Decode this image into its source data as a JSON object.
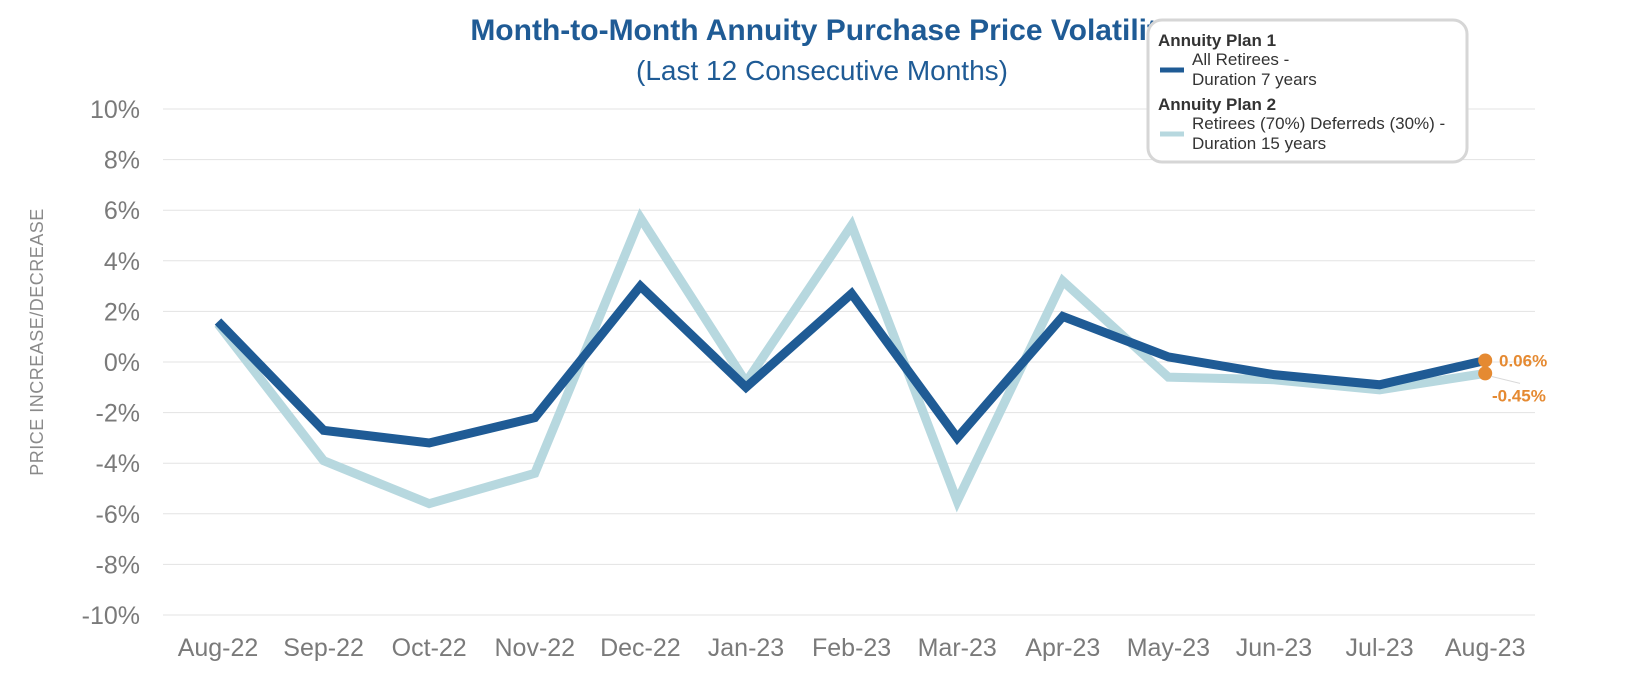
{
  "chart_data": {
    "type": "line",
    "title": "Month-to-Month Annuity Purchase Price Volatility",
    "subtitle": "(Last 12 Consecutive Months)",
    "ylabel": "PRICE INCREASE/DECREASE",
    "xlabel": "",
    "ylim": [
      -10,
      10
    ],
    "yticks": [
      10,
      8,
      6,
      4,
      2,
      0,
      -2,
      -4,
      -6,
      -8,
      -10
    ],
    "ytick_labels": [
      "10%",
      "8%",
      "6%",
      "4%",
      "2%",
      "0%",
      "-2%",
      "-4%",
      "-6%",
      "-8%",
      "-10%"
    ],
    "grid": true,
    "categories": [
      "Aug-22",
      "Sep-22",
      "Oct-22",
      "Nov-22",
      "Dec-22",
      "Jan-23",
      "Feb-23",
      "Mar-23",
      "Apr-23",
      "May-23",
      "Jun-23",
      "Jul-23",
      "Aug-23"
    ],
    "series": [
      {
        "name": "Annuity Plan 2",
        "legend_title": "Annuity Plan 2",
        "legend_lines": [
          "Retirees (70%) Deferreds (30%) -",
          "Duration 15 years"
        ],
        "color": "#b7d8df",
        "values": [
          1.5,
          -3.9,
          -5.6,
          -4.4,
          5.7,
          -0.8,
          5.4,
          -5.5,
          3.2,
          -0.6,
          -0.7,
          -1.1,
          -0.45
        ],
        "end_label": "-0.45%"
      },
      {
        "name": "Annuity Plan 1",
        "legend_title": "Annuity Plan 1",
        "legend_lines": [
          "All Retirees -",
          "Duration 7 years"
        ],
        "color": "#1f5b95",
        "values": [
          1.6,
          -2.7,
          -3.2,
          -2.2,
          3.0,
          -1.0,
          2.7,
          -3.0,
          1.8,
          0.2,
          -0.5,
          -0.9,
          0.06
        ],
        "end_label": "0.06%"
      }
    ],
    "end_marker_color": "#e58a32",
    "legend_position": "top-right"
  }
}
